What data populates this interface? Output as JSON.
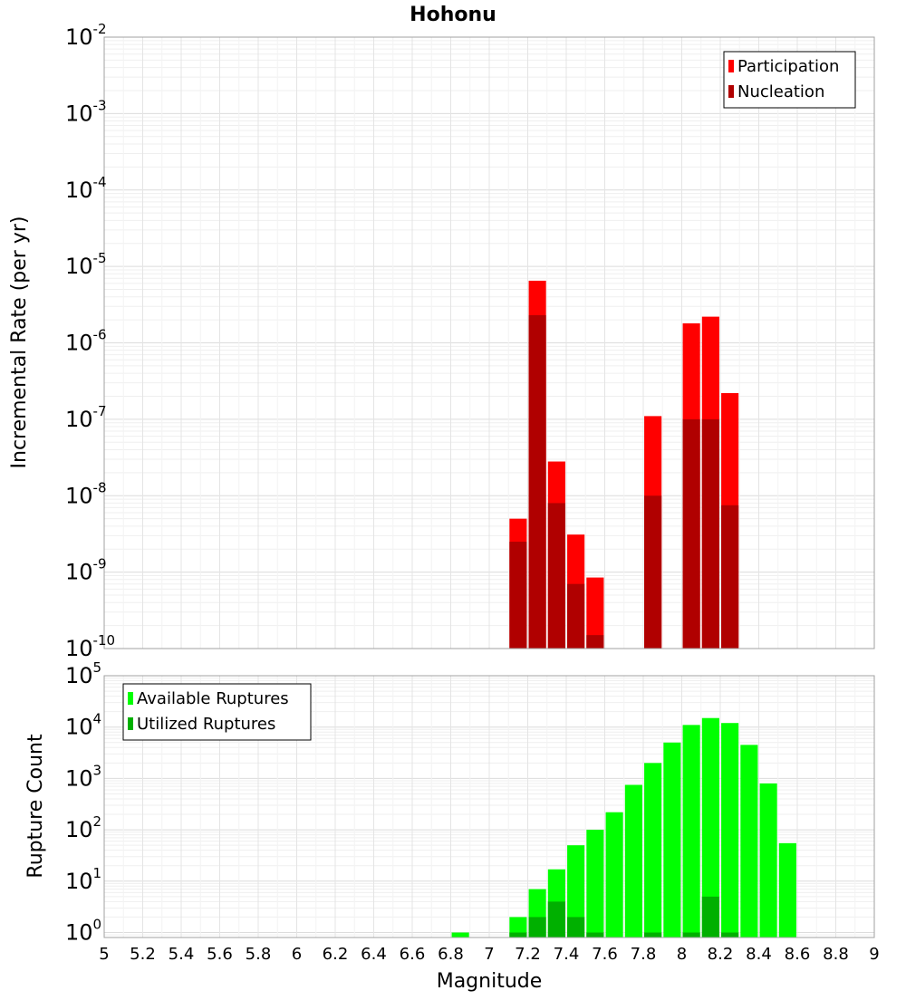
{
  "chart_data": [
    {
      "type": "bar",
      "title": "Hohonu",
      "xlabel": "",
      "ylabel": "Incremental Rate (per yr)",
      "yscale": "log",
      "ylim": [
        1e-10,
        0.01
      ],
      "xlim": [
        5,
        9
      ],
      "grid": true,
      "legend_position": "top-right",
      "x": [
        7.15,
        7.25,
        7.35,
        7.45,
        7.55,
        7.85,
        8.05,
        8.15,
        8.25
      ],
      "series": [
        {
          "name": "Participation",
          "color": "#ff0000",
          "values": [
            5e-09,
            6.5e-06,
            2.8e-08,
            3.1e-09,
            8.5e-10,
            1.1e-07,
            1.8e-06,
            2.2e-06,
            2.2e-07
          ]
        },
        {
          "name": "Nucleation",
          "color": "#b00000",
          "values": [
            2.5e-09,
            2.3e-06,
            8e-09,
            7e-10,
            1.5e-10,
            1e-08,
            1e-07,
            1e-07,
            7.5e-09
          ]
        }
      ],
      "y_ticks": [
        {
          "base": "10",
          "exp": "-2"
        },
        {
          "base": "10",
          "exp": "-3"
        },
        {
          "base": "10",
          "exp": "-4"
        },
        {
          "base": "10",
          "exp": "-5"
        },
        {
          "base": "10",
          "exp": "-6"
        },
        {
          "base": "10",
          "exp": "-7"
        },
        {
          "base": "10",
          "exp": "-8"
        },
        {
          "base": "10",
          "exp": "-9"
        },
        {
          "base": "10",
          "exp": "-10"
        }
      ]
    },
    {
      "type": "bar",
      "title": "",
      "xlabel": "Magnitude",
      "ylabel": "Rupture Count",
      "yscale": "log",
      "ylim": [
        0.8,
        100000.0
      ],
      "xlim": [
        5,
        9
      ],
      "grid": true,
      "legend_position": "top-left",
      "x": [
        6.85,
        7.15,
        7.25,
        7.35,
        7.45,
        7.55,
        7.65,
        7.75,
        7.85,
        7.95,
        8.05,
        8.15,
        8.25,
        8.35,
        8.45,
        8.55
      ],
      "series": [
        {
          "name": "Available Ruptures",
          "color": "#00ff00",
          "values": [
            1,
            2,
            7,
            17,
            50,
            100,
            220,
            750,
            2000,
            5000,
            11000,
            15000,
            12000,
            4500,
            800,
            55
          ]
        },
        {
          "name": "Utilized Ruptures",
          "color": "#00b000",
          "values": [
            0,
            1,
            2,
            4,
            2,
            1,
            0,
            0,
            1,
            0,
            1,
            5,
            1,
            0,
            0,
            0
          ]
        }
      ],
      "y_ticks": [
        {
          "base": "10",
          "exp": "5"
        },
        {
          "base": "10",
          "exp": "4"
        },
        {
          "base": "10",
          "exp": "3"
        },
        {
          "base": "10",
          "exp": "2"
        },
        {
          "base": "10",
          "exp": "1"
        },
        {
          "base": "10",
          "exp": "0"
        }
      ],
      "x_ticks": [
        "5",
        "5.2",
        "5.4",
        "5.6",
        "5.8",
        "6",
        "6.2",
        "6.4",
        "6.6",
        "6.8",
        "7",
        "7.2",
        "7.4",
        "7.6",
        "7.8",
        "8",
        "8.2",
        "8.4",
        "8.6",
        "8.8",
        "9"
      ]
    }
  ]
}
